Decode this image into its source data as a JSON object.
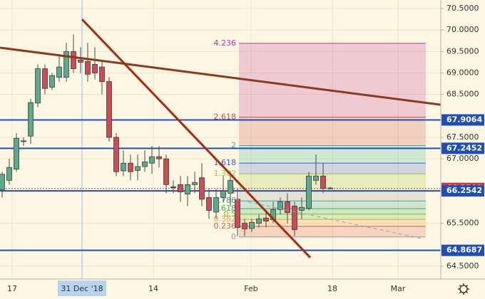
{
  "chart_data": {
    "type": "candlestick",
    "background": "#fcf6e2",
    "xlim": [
      -0.3,
      61.5
    ],
    "ylim": [
      64.2,
      70.7
    ],
    "xticks": [
      {
        "value": 1.4,
        "label": "17"
      },
      {
        "value": 11.2,
        "label": "31 Dec '18"
      },
      {
        "value": 21.2,
        "label": "14"
      },
      {
        "value": 34.9,
        "label": "Feb"
      },
      {
        "value": 46.3,
        "label": "18"
      },
      {
        "value": 55.5,
        "label": "Mar"
      }
    ],
    "yticks": [
      {
        "value": 64.5,
        "label": "64.5000"
      },
      {
        "value": 65.5,
        "label": "65.5000"
      },
      {
        "value": 67,
        "label": "67.0000"
      },
      {
        "value": 67.5,
        "label": "67.5000"
      },
      {
        "value": 68.5,
        "label": "68.5000"
      },
      {
        "value": 69,
        "label": "69.0000"
      },
      {
        "value": 69.5,
        "label": "69.5000"
      },
      {
        "value": 70,
        "label": "70.0000"
      },
      {
        "value": 70.5,
        "label": "70.5000"
      }
    ],
    "grid": true,
    "crosshair_x": 11.2,
    "up_color": "#5ea88c",
    "down_color": "#c94c58",
    "x": [
      0,
      1,
      2,
      3,
      4,
      5,
      6,
      7,
      8,
      9,
      10,
      11,
      12,
      13,
      14,
      15,
      16,
      17,
      18,
      19,
      20,
      21,
      22,
      23,
      24,
      25,
      26,
      27,
      28,
      29,
      30,
      31,
      32,
      33,
      34,
      35,
      36,
      37,
      38,
      39,
      40,
      41,
      42,
      43,
      44,
      45,
      46
    ],
    "open": [
      66.28,
      66.5,
      66.76,
      67.4,
      67.53,
      68.3,
      69.1,
      68.67,
      68.9,
      68.9,
      69.5,
      69.3,
      69.27,
      69.2,
      69.14,
      68.8,
      67.5,
      66.72,
      66.9,
      66.73,
      66.82,
      66.9,
      67.05,
      67.0,
      66.35,
      66.4,
      66.18,
      66.4,
      66.56,
      66.1,
      65.76,
      66.1,
      66.2,
      66.06,
      65.5,
      65.38,
      65.5,
      65.62,
      65.58,
      65.82,
      66.0,
      65.9,
      65.8,
      65.85,
      66.5,
      66.6,
      66.32
    ],
    "high": [
      66.7,
      67.0,
      67.6,
      67.5,
      68.4,
      69.2,
      69.2,
      69.0,
      69.4,
      69.7,
      69.9,
      69.6,
      69.7,
      69.6,
      69.3,
      68.9,
      67.6,
      67.2,
      67.1,
      67.1,
      67.2,
      67.3,
      67.3,
      67.1,
      66.5,
      66.6,
      66.6,
      66.7,
      66.9,
      66.3,
      66.3,
      66.6,
      66.7,
      66.3,
      65.6,
      65.6,
      65.7,
      65.8,
      66.0,
      66.1,
      66.2,
      66.0,
      66.1,
      66.7,
      67.1,
      66.9,
      66.35
    ],
    "low": [
      66.1,
      66.4,
      66.7,
      67.3,
      67.35,
      68.2,
      68.5,
      68.6,
      68.8,
      68.8,
      69.0,
      69.0,
      68.8,
      68.85,
      68.5,
      67.4,
      66.6,
      66.6,
      66.5,
      66.5,
      66.7,
      66.65,
      66.8,
      66.2,
      66.2,
      66.0,
      65.9,
      66.2,
      65.9,
      65.6,
      65.6,
      66.0,
      65.9,
      65.2,
      65.2,
      65.3,
      65.4,
      65.4,
      65.5,
      65.7,
      65.5,
      65.2,
      65.6,
      65.8,
      66.4,
      66.2,
      66.3
    ],
    "close": [
      66.64,
      66.8,
      67.48,
      67.42,
      68.31,
      69.1,
      68.64,
      68.94,
      69.14,
      69.5,
      69.1,
      69.25,
      68.97,
      69.0,
      68.8,
      67.5,
      66.7,
      66.9,
      66.7,
      66.82,
      66.93,
      67.05,
      67.0,
      66.4,
      66.33,
      66.23,
      66.4,
      66.45,
      66.06,
      65.8,
      66.1,
      66.25,
      66.5,
      65.4,
      65.37,
      65.52,
      65.6,
      65.55,
      65.82,
      66.0,
      65.75,
      65.35,
      65.87,
      66.6,
      66.6,
      66.31,
      66.31
    ],
    "fib": {
      "x": [
        33.2,
        59.4
      ],
      "levels": [
        {
          "label": "0",
          "price": 65.18,
          "color": "#9a9a9a"
        },
        {
          "label": "0.236",
          "price": 65.43,
          "color": "#e05a4a"
        },
        {
          "label": "0.382",
          "price": 65.59,
          "color": "#e8a33a"
        },
        {
          "label": "0.5",
          "price": 65.71,
          "color": "#6cbf3c"
        },
        {
          "label": "0.618",
          "price": 65.84,
          "color": "#3fae5a"
        },
        {
          "label": "0.786",
          "price": 66.02,
          "color": "#3aa3a0"
        },
        {
          "label": "1",
          "price": 66.245,
          "color": "#9a9a9a"
        },
        {
          "label": "1.382",
          "price": 66.65,
          "color": "#a8c83a"
        },
        {
          "label": "1.618",
          "price": 66.9,
          "color": "#3a5fd0"
        },
        {
          "label": "2",
          "price": 67.31,
          "color": "#2fb59a"
        },
        {
          "label": "2.618",
          "price": 67.97,
          "color": "#d04848"
        },
        {
          "label": "4.236",
          "price": 69.69,
          "color": "#c0309a"
        }
      ]
    },
    "trendlines": [
      {
        "x": [
          -0.3,
          61.5
        ],
        "y": [
          69.59,
          68.26
        ],
        "color": "#8b3a1e",
        "style": "solid"
      },
      {
        "x": [
          11.2,
          43.2
        ],
        "y": [
          70.25,
          64.7
        ],
        "color": "#a82a10",
        "style": "solid"
      },
      {
        "x": [
          32.7,
          58.7
        ],
        "y": [
          66.06,
          65.15
        ],
        "color": "#a0a0a0",
        "style": "dashed"
      }
    ],
    "hlines": [
      {
        "price": 67.9064,
        "color": "#1f4fb4",
        "style": "solid"
      },
      {
        "price": 67.2452,
        "color": "#1f4fb4",
        "style": "solid"
      },
      {
        "price": 66.3109,
        "color": "#c43a4a",
        "style": "dotted"
      },
      {
        "price": 66.2542,
        "color": "#1f4fb4",
        "style": "solid"
      },
      {
        "price": 64.8687,
        "color": "#1f4fb4",
        "style": "solid"
      }
    ]
  }
}
